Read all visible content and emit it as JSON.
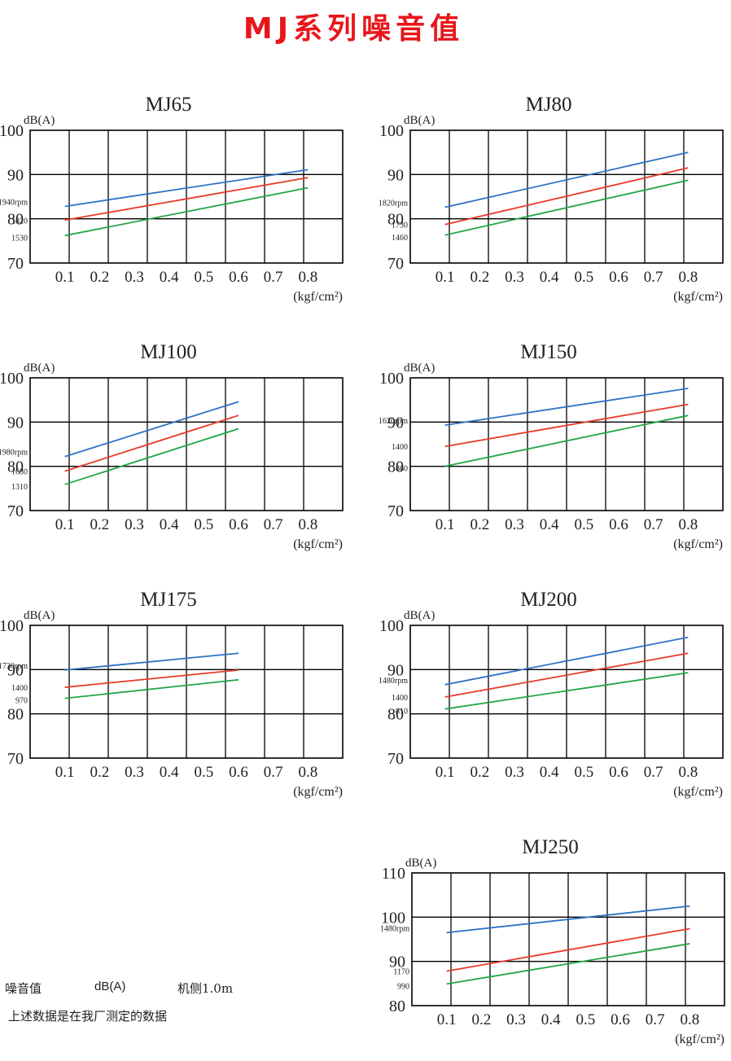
{
  "page": {
    "title": "MJ系列噪音值",
    "notes": {
      "noise_label": "噪音值",
      "unit": "dB(A)",
      "position": "机侧1.0m",
      "remark": "上述数据是在我厂测定的数据"
    }
  },
  "colors": {
    "title": "#e8161b",
    "blue": "#2f72c4",
    "red": "#e83a2a",
    "green": "#22a648",
    "grid": "#000000"
  },
  "chart_data": [
    {
      "type": "line",
      "title": "MJ65",
      "ylabel": "dB(A)",
      "xlabel": "(kgf/cm²)",
      "x_ticks": [
        "0.1",
        "0.2",
        "0.3",
        "0.4",
        "0.5",
        "0.6",
        "0.7",
        "0.8"
      ],
      "xlim": [
        0,
        0.9
      ],
      "ylim": [
        70,
        100
      ],
      "y_ticks": [
        70,
        80,
        90,
        100
      ],
      "series": [
        {
          "name": "1940rpm",
          "color": "blue",
          "x": [
            0.1,
            0.8
          ],
          "y": [
            82.8,
            91.1
          ]
        },
        {
          "name": "1820",
          "color": "red",
          "x": [
            0.1,
            0.8
          ],
          "y": [
            79.7,
            89.3
          ]
        },
        {
          "name": "1530",
          "color": "green",
          "x": [
            0.1,
            0.8
          ],
          "y": [
            76.2,
            87.0
          ]
        }
      ]
    },
    {
      "type": "line",
      "title": "MJ80",
      "ylabel": "dB(A)",
      "xlabel": "(kgf/cm²)",
      "x_ticks": [
        "0.1",
        "0.2",
        "0.3",
        "0.4",
        "0.5",
        "0.6",
        "0.7",
        "0.8"
      ],
      "xlim": [
        0,
        0.9
      ],
      "ylim": [
        70,
        100
      ],
      "y_ticks": [
        70,
        80,
        90,
        100
      ],
      "series": [
        {
          "name": "1820rpm",
          "color": "blue",
          "x": [
            0.1,
            0.8
          ],
          "y": [
            82.6,
            95.0
          ]
        },
        {
          "name": "1730",
          "color": "red",
          "x": [
            0.1,
            0.8
          ],
          "y": [
            78.7,
            91.5
          ]
        },
        {
          "name": "1460",
          "color": "green",
          "x": [
            0.1,
            0.8
          ],
          "y": [
            76.3,
            88.7
          ]
        }
      ]
    },
    {
      "type": "line",
      "title": "MJ100",
      "ylabel": "dB(A)",
      "xlabel": "(kgf/cm²)",
      "x_ticks": [
        "0.1",
        "0.2",
        "0.3",
        "0.4",
        "0.5",
        "0.6",
        "0.7",
        "0.8"
      ],
      "xlim": [
        0,
        0.9
      ],
      "ylim": [
        70,
        100
      ],
      "y_ticks": [
        70,
        80,
        90,
        100
      ],
      "series": [
        {
          "name": "1980rpm",
          "color": "blue",
          "x": [
            0.1,
            0.6
          ],
          "y": [
            82.2,
            94.6
          ]
        },
        {
          "name": "1680",
          "color": "red",
          "x": [
            0.1,
            0.6
          ],
          "y": [
            78.9,
            91.5
          ]
        },
        {
          "name": "1310",
          "color": "green",
          "x": [
            0.1,
            0.6
          ],
          "y": [
            75.9,
            88.5
          ]
        }
      ]
    },
    {
      "type": "line",
      "title": "MJ150",
      "ylabel": "dB(A)",
      "xlabel": "(kgf/cm²)",
      "x_ticks": [
        "0.1",
        "0.2",
        "0.3",
        "0.4",
        "0.5",
        "0.6",
        "0.7",
        "0.8"
      ],
      "xlim": [
        0,
        0.9
      ],
      "ylim": [
        70,
        100
      ],
      "y_ticks": [
        70,
        80,
        90,
        100
      ],
      "series": [
        {
          "name": "1620rpm",
          "color": "blue",
          "x": [
            0.1,
            0.8
          ],
          "y": [
            89.3,
            97.6
          ]
        },
        {
          "name": "1400",
          "color": "red",
          "x": [
            0.1,
            0.8
          ],
          "y": [
            84.5,
            94.0
          ]
        },
        {
          "name": "860",
          "color": "green",
          "x": [
            0.1,
            0.8
          ],
          "y": [
            80.0,
            91.5
          ]
        }
      ]
    },
    {
      "type": "line",
      "title": "MJ175",
      "ylabel": "dB(A)",
      "xlabel": "(kgf/cm²)",
      "x_ticks": [
        "0.1",
        "0.2",
        "0.3",
        "0.4",
        "0.5",
        "0.6",
        "0.7",
        "0.8"
      ],
      "xlim": [
        0,
        0.9
      ],
      "ylim": [
        70,
        100
      ],
      "y_ticks": [
        70,
        80,
        90,
        100
      ],
      "series": [
        {
          "name": "1730rpm",
          "color": "blue",
          "x": [
            0.1,
            0.6
          ],
          "y": [
            89.9,
            93.7
          ]
        },
        {
          "name": "1400",
          "color": "red",
          "x": [
            0.1,
            0.6
          ],
          "y": [
            86.0,
            89.9
          ]
        },
        {
          "name": "970",
          "color": "green",
          "x": [
            0.1,
            0.6
          ],
          "y": [
            83.5,
            87.7
          ]
        }
      ]
    },
    {
      "type": "line",
      "title": "MJ200",
      "ylabel": "dB(A)",
      "xlabel": "(kgf/cm²)",
      "x_ticks": [
        "0.1",
        "0.2",
        "0.3",
        "0.4",
        "0.5",
        "0.6",
        "0.7",
        "0.8"
      ],
      "xlim": [
        0,
        0.9
      ],
      "ylim": [
        70,
        100
      ],
      "y_ticks": [
        70,
        80,
        90,
        100
      ],
      "series": [
        {
          "name": "1480rpm",
          "color": "blue",
          "x": [
            0.1,
            0.8
          ],
          "y": [
            86.6,
            97.3
          ]
        },
        {
          "name": "1400",
          "color": "red",
          "x": [
            0.1,
            0.8
          ],
          "y": [
            83.8,
            93.7
          ]
        },
        {
          "name": "810",
          "color": "green",
          "x": [
            0.1,
            0.8
          ],
          "y": [
            81.1,
            89.3
          ]
        }
      ]
    },
    {
      "type": "line",
      "title": "MJ250",
      "ylabel": "dB(A)",
      "xlabel": "(kgf/cm²)",
      "x_ticks": [
        "0.1",
        "0.2",
        "0.3",
        "0.4",
        "0.5",
        "0.6",
        "0.7",
        "0.8"
      ],
      "xlim": [
        0,
        0.9
      ],
      "ylim": [
        80,
        110
      ],
      "y_ticks": [
        80,
        90,
        100,
        110
      ],
      "series": [
        {
          "name": "1480rpm",
          "color": "blue",
          "x": [
            0.1,
            0.8
          ],
          "y": [
            96.5,
            102.5
          ]
        },
        {
          "name": "1170",
          "color": "red",
          "x": [
            0.1,
            0.8
          ],
          "y": [
            87.8,
            97.4
          ]
        },
        {
          "name": "990",
          "color": "green",
          "x": [
            0.1,
            0.8
          ],
          "y": [
            84.9,
            94.0
          ]
        }
      ]
    }
  ]
}
